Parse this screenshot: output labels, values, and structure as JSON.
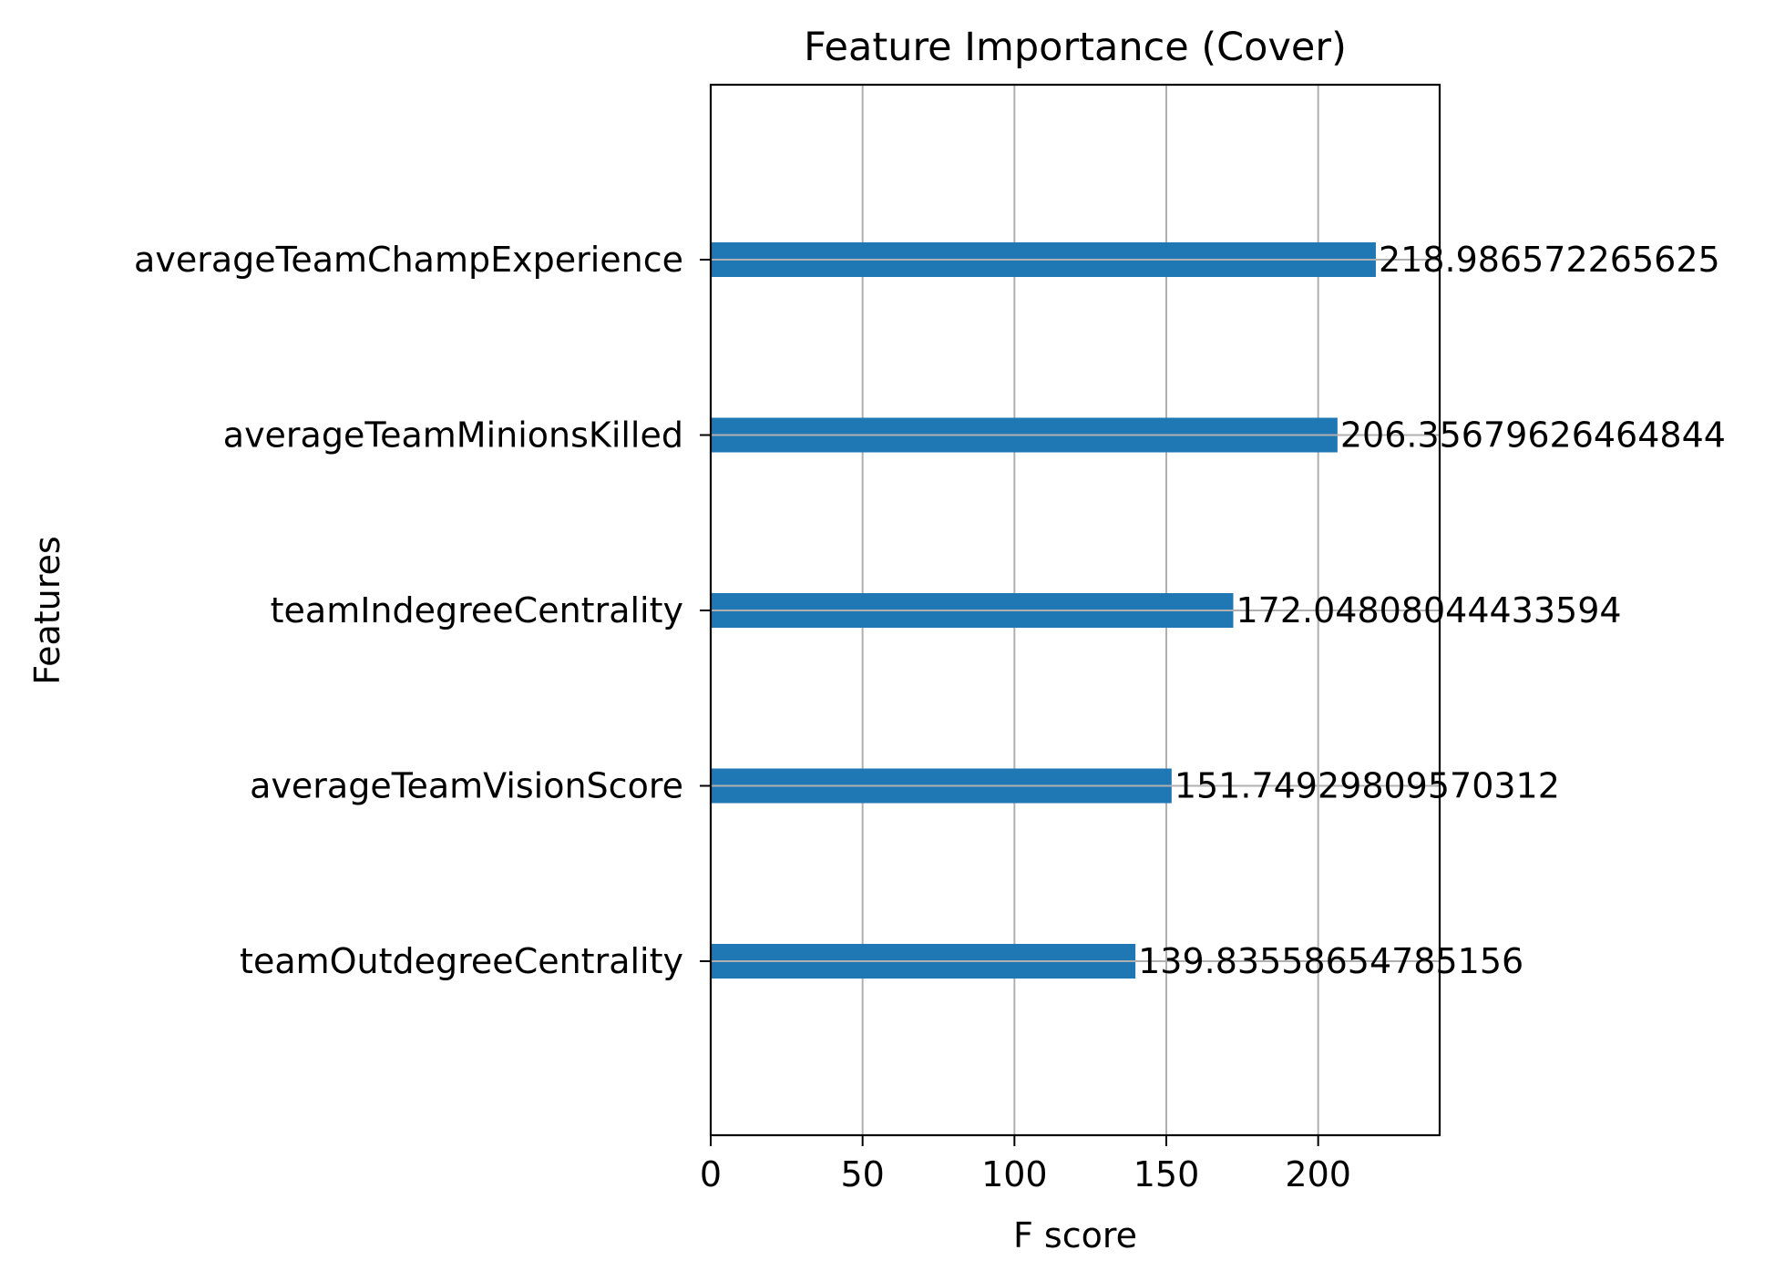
{
  "chart_data": {
    "type": "bar",
    "orientation": "horizontal",
    "title": "Feature Importance (Cover)",
    "xlabel": "F score",
    "ylabel": "Features",
    "xlim": [
      0,
      240
    ],
    "x_ticks": [
      0,
      50,
      100,
      150,
      200
    ],
    "grid": true,
    "legend": "none",
    "bar_color": "#1f77b4",
    "categories": [
      "averageTeamChampExperience",
      "averageTeamMinionsKilled",
      "teamIndegreeCentrality",
      "averageTeamVisionScore",
      "teamOutdegreeCentrality"
    ],
    "values": [
      218.986572265625,
      206.35679626464844,
      172.04808044433594,
      151.74929809570312,
      139.83558654785156
    ],
    "value_labels": [
      "218.986572265625",
      "206.35679626464844",
      "172.04808044433594",
      "151.74929809570312",
      "139.83558654785156"
    ]
  }
}
